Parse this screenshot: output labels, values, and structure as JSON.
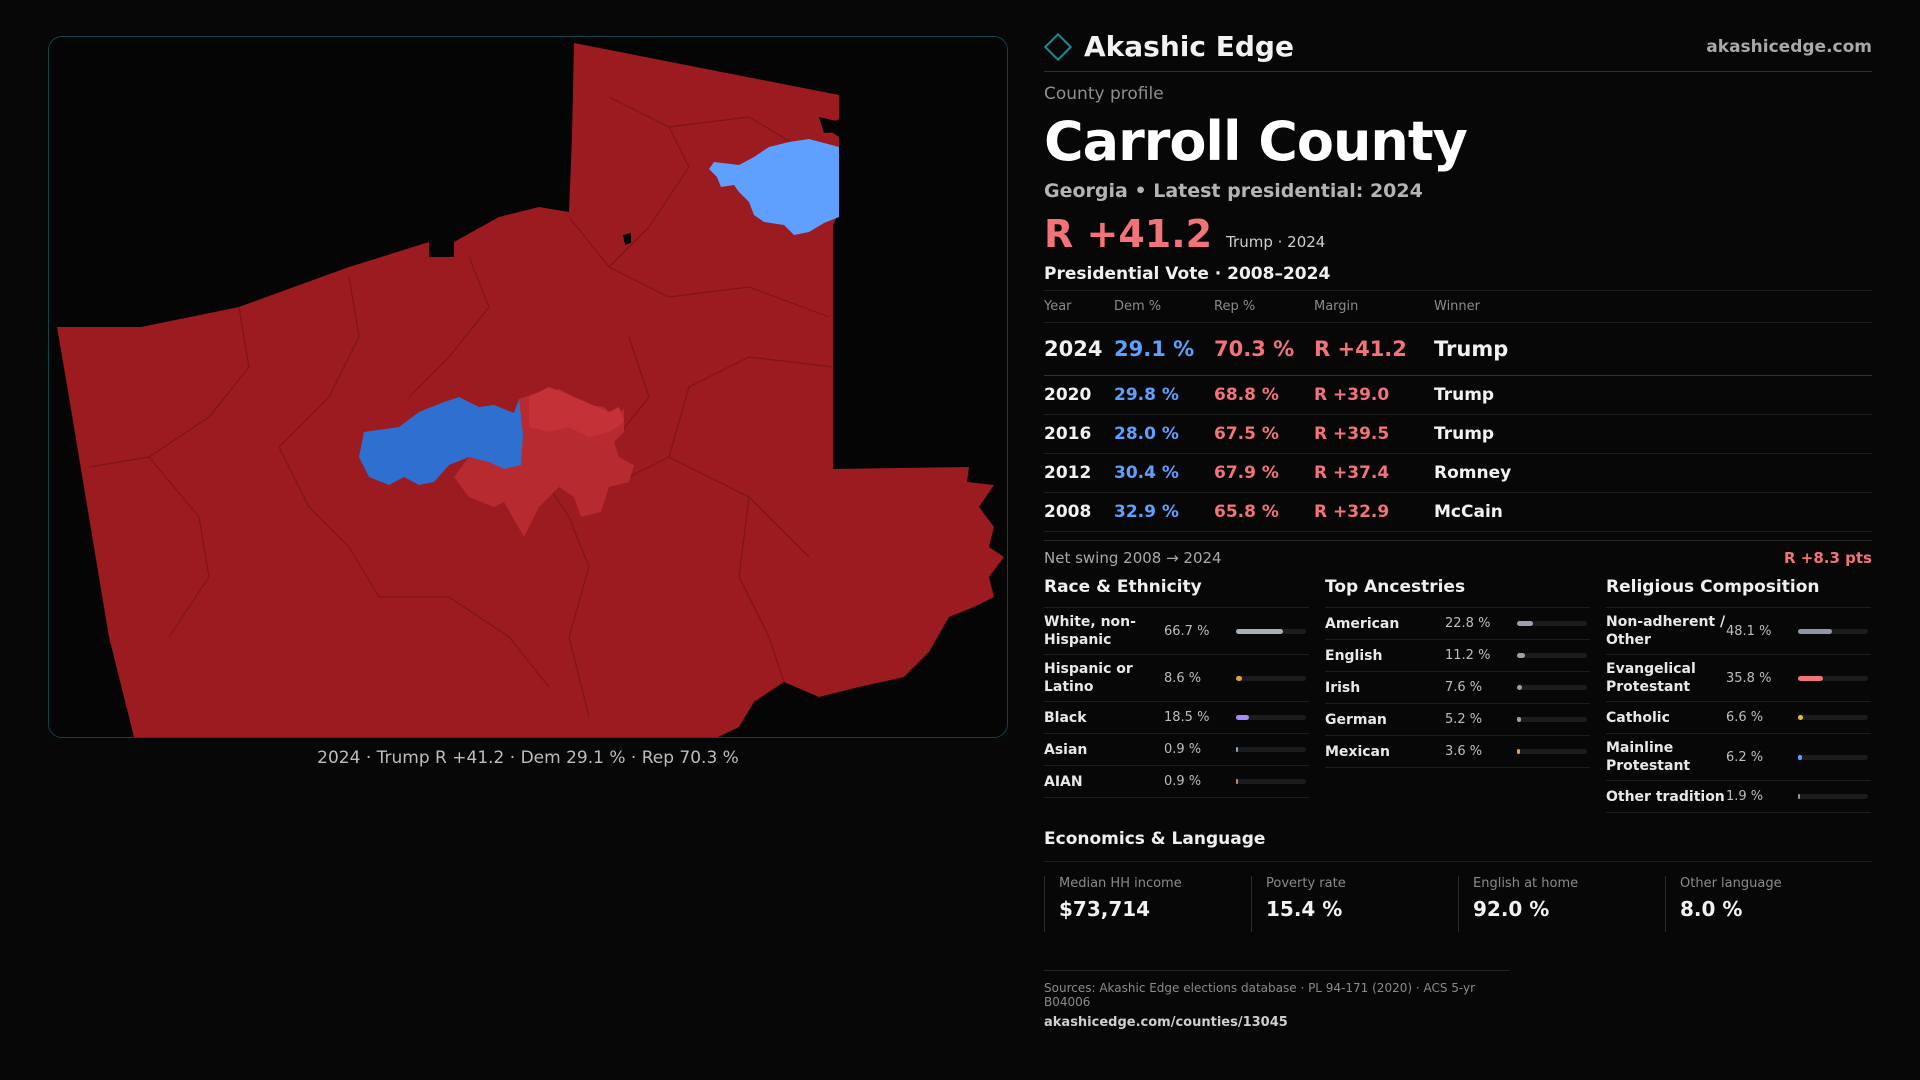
{
  "map": {
    "caption": "2024 · Trump R +41.2 · Dem 29.1 % · Rep 70.3 %",
    "colors": {
      "strong_rep": "#9c1b20",
      "lean_rep": "#b72a30",
      "dem": "#2f6fd0",
      "light_dem": "#5fa0ff",
      "border": "#0f4548"
    }
  },
  "brand": {
    "name": "Akashic Edge",
    "url": "akashicedge.com"
  },
  "profile": {
    "eyebrow": "County profile",
    "title": "Carroll County",
    "subtitle": "Georgia • Latest presidential: 2024",
    "headline_margin": "R +41.2",
    "headline_sub": "Trump · 2024"
  },
  "vote": {
    "title": "Presidential Vote · 2008–2024",
    "headers": {
      "year": "Year",
      "dem": "Dem %",
      "rep": "Rep %",
      "margin": "Margin",
      "winner": "Winner"
    },
    "rows": [
      {
        "year": "2024",
        "dem": "29.1 %",
        "rep": "70.3 %",
        "margin": "R +41.2",
        "winner": "Trump"
      },
      {
        "year": "2020",
        "dem": "29.8 %",
        "rep": "68.8 %",
        "margin": "R +39.0",
        "winner": "Trump"
      },
      {
        "year": "2016",
        "dem": "28.0 %",
        "rep": "67.5 %",
        "margin": "R +39.5",
        "winner": "Trump"
      },
      {
        "year": "2012",
        "dem": "30.4 %",
        "rep": "67.9 %",
        "margin": "R +37.4",
        "winner": "Romney"
      },
      {
        "year": "2008",
        "dem": "32.9 %",
        "rep": "65.8 %",
        "margin": "R +32.9",
        "winner": "McCain"
      }
    ],
    "swing_label": "Net swing 2008 → 2024",
    "swing_value": "R +8.3 pts"
  },
  "race": {
    "title": "Race & Ethnicity",
    "rows": [
      {
        "label": "White, non-Hispanic",
        "value": "66.7 %",
        "pct": 66.7,
        "color": "#a9aebb"
      },
      {
        "label": "Hispanic or Latino",
        "value": "8.6 %",
        "pct": 8.6,
        "color": "#e0a23a"
      },
      {
        "label": "Black",
        "value": "18.5 %",
        "pct": 18.5,
        "color": "#a78bfa"
      },
      {
        "label": "Asian",
        "value": "0.9 %",
        "pct": 0.9,
        "color": "#7fa8c9"
      },
      {
        "label": "AIAN",
        "value": "0.9 %",
        "pct": 0.9,
        "color": "#c98a5f"
      }
    ]
  },
  "ancestry": {
    "title": "Top Ancestries",
    "rows": [
      {
        "label": "American",
        "value": "22.8 %",
        "pct": 22.8,
        "color": "#9aa0ab"
      },
      {
        "label": "English",
        "value": "11.2 %",
        "pct": 11.2,
        "color": "#9aa0ab"
      },
      {
        "label": "Irish",
        "value": "7.6 %",
        "pct": 7.6,
        "color": "#9aa0ab"
      },
      {
        "label": "German",
        "value": "5.2 %",
        "pct": 5.2,
        "color": "#9aa0ab"
      },
      {
        "label": "Mexican",
        "value": "3.6 %",
        "pct": 3.6,
        "color": "#e0a23a"
      }
    ]
  },
  "religion": {
    "title": "Religious Composition",
    "rows": [
      {
        "label": "Non-adherent / Other",
        "value": "48.1 %",
        "pct": 48.1,
        "color": "#8f97a6"
      },
      {
        "label": "Evangelical Protestant",
        "value": "35.8 %",
        "pct": 35.8,
        "color": "#f2737a"
      },
      {
        "label": "Catholic",
        "value": "6.6 %",
        "pct": 6.6,
        "color": "#e0c23a"
      },
      {
        "label": "Mainline Protestant",
        "value": "6.2 %",
        "pct": 6.2,
        "color": "#5fa0ff"
      },
      {
        "label": "Other tradition",
        "value": "1.9 %",
        "pct": 1.9,
        "color": "#8f97a6"
      }
    ]
  },
  "econ": {
    "title": "Economics & Language",
    "cells": [
      {
        "label": "Median HH income",
        "value": "$73,714"
      },
      {
        "label": "Poverty rate",
        "value": "15.4 %"
      },
      {
        "label": "English at home",
        "value": "92.0 %"
      },
      {
        "label": "Other language",
        "value": "8.0 %"
      }
    ]
  },
  "footer": {
    "sources": "Sources: Akashic Edge elections database · PL 94-171 (2020) · ACS 5-yr B04006",
    "url": "akashicedge.com/counties/13045"
  }
}
